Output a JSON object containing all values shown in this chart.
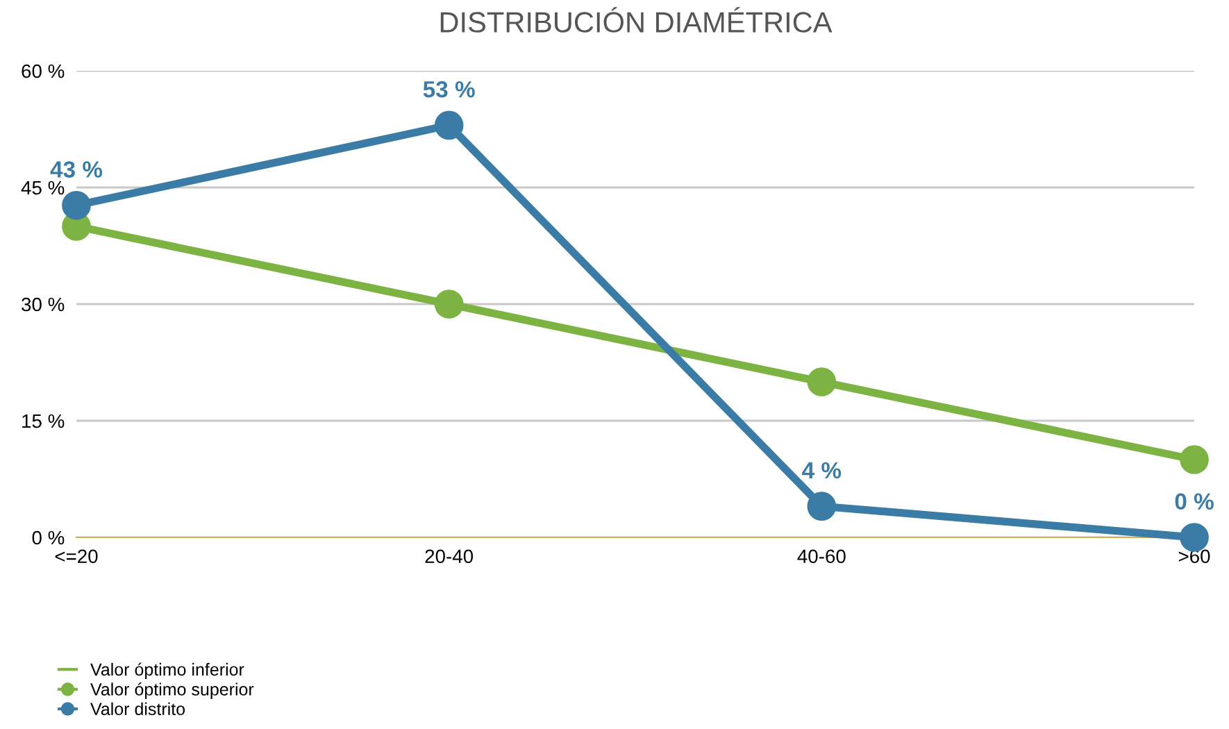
{
  "chart_data": {
    "type": "line",
    "title": "DISTRIBUCIÓN DIAMÉTRICA",
    "categories": [
      "<=20",
      "20-40",
      "40-60",
      ">60"
    ],
    "series": [
      {
        "name": "Valor óptimo inferior",
        "color": "#7cb342",
        "values": [
          null,
          null,
          null,
          null
        ],
        "marker": "none"
      },
      {
        "name": "Valor óptimo superior",
        "color": "#7cb342",
        "values": [
          40,
          30,
          20,
          10
        ],
        "marker": "circle"
      },
      {
        "name": "Valor distrito",
        "color": "#3a7ca5",
        "values": [
          42.7,
          53,
          4,
          0
        ],
        "marker": "circle",
        "value_labels": [
          "43 %",
          "53 %",
          "4 %",
          "0 %"
        ]
      }
    ],
    "ylim": [
      0,
      60
    ],
    "yticks": [
      {
        "value": 0,
        "label": "0 %"
      },
      {
        "value": 15,
        "label": "15 %"
      },
      {
        "value": 30,
        "label": "30 %"
      },
      {
        "value": 45,
        "label": "45 %"
      },
      {
        "value": 60,
        "label": "60 %"
      }
    ],
    "grid": "y",
    "legend": "bottom left",
    "line_style": "solid"
  }
}
